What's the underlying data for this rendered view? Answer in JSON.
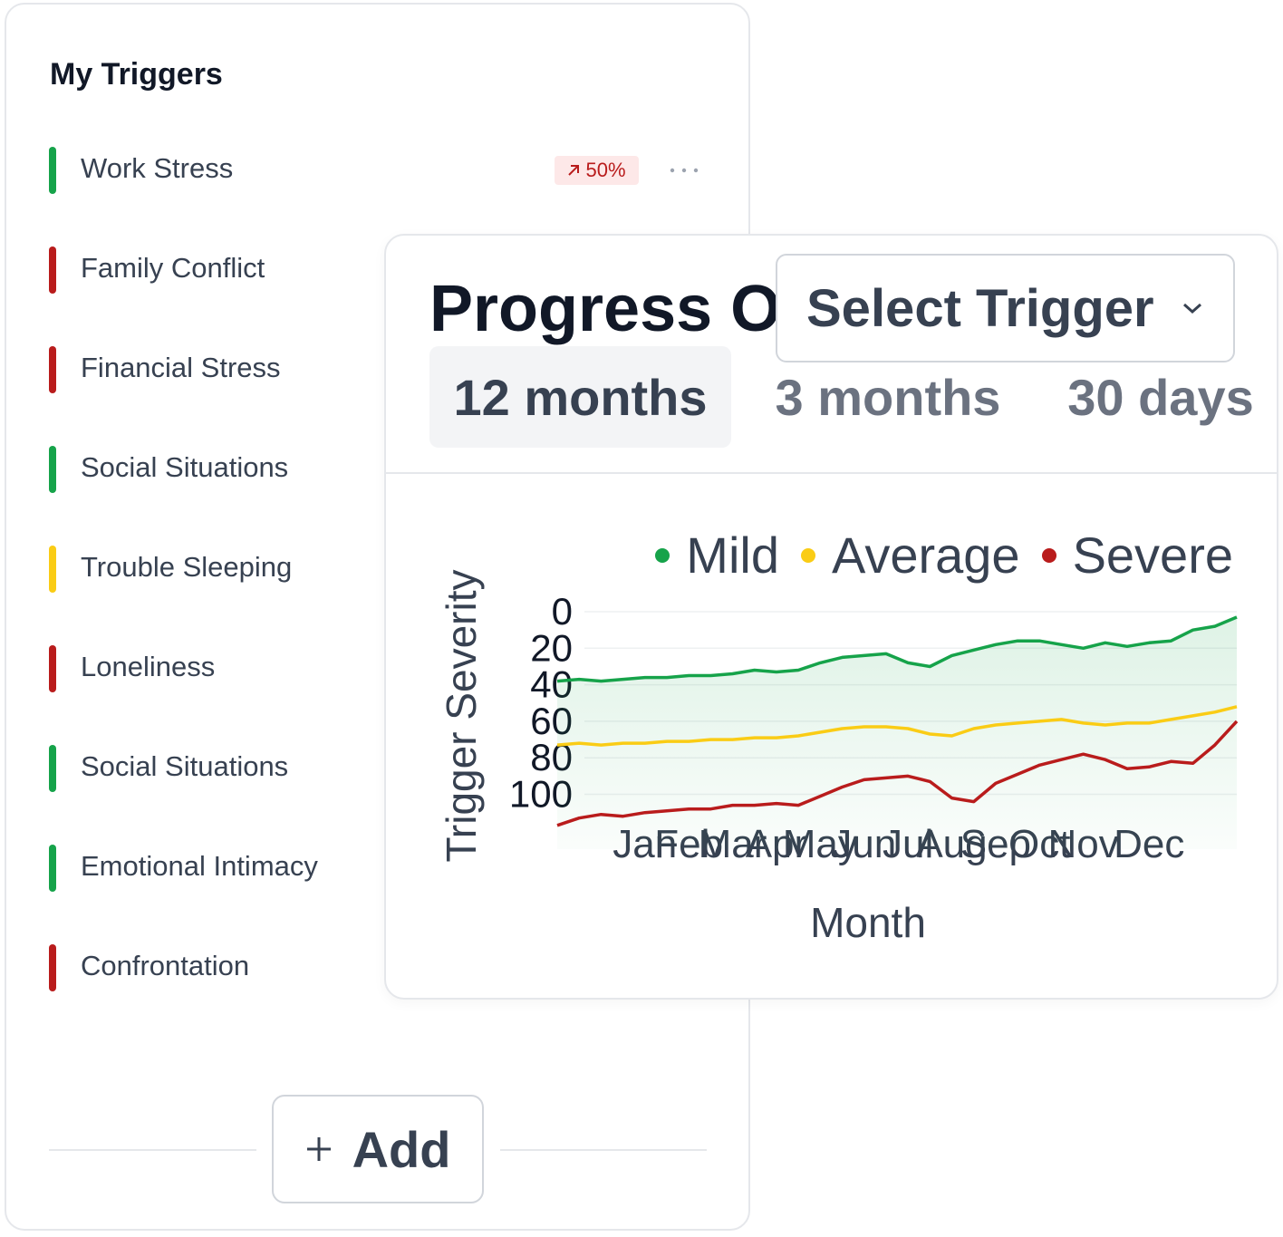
{
  "sidebar": {
    "title": "My Triggers",
    "items": [
      {
        "label": "Work Stress",
        "color": "#16a34a"
      },
      {
        "label": "Family Conflict",
        "color": "#b91c1c"
      },
      {
        "label": "Financial Stress",
        "color": "#b91c1c"
      },
      {
        "label": "Social Situations",
        "color": "#16a34a"
      },
      {
        "label": "Trouble Sleeping",
        "color": "#facc15"
      },
      {
        "label": "Loneliness",
        "color": "#b91c1c"
      },
      {
        "label": "Social Situations",
        "color": "#16a34a"
      },
      {
        "label": "Emotional Intimacy",
        "color": "#16a34a"
      },
      {
        "label": "Confrontation",
        "color": "#b91c1c"
      }
    ],
    "badge": "50%",
    "add_button": "Add"
  },
  "panel": {
    "title": "Progress O",
    "select": "Select Trigger",
    "tabs": [
      "12 months",
      "3 months",
      "30 days"
    ],
    "active_tab": 0
  },
  "chart_data": {
    "type": "line",
    "y_label": "Trigger Severity",
    "x_label": "Month",
    "x": [
      0,
      1,
      2,
      3,
      4,
      5,
      6,
      7,
      8,
      9,
      10,
      11,
      12,
      13,
      14,
      15,
      16,
      17,
      18,
      19,
      20,
      21,
      22,
      23,
      24,
      25,
      26,
      27,
      28,
      29,
      30,
      31
    ],
    "xlim": [
      0,
      31
    ],
    "xticks": [
      {
        "value": 4,
        "label": "Jan"
      },
      {
        "value": 6,
        "label": "Feb"
      },
      {
        "value": 8,
        "label": "Mar"
      },
      {
        "value": 10,
        "label": "Apr"
      },
      {
        "value": 12,
        "label": "May"
      },
      {
        "value": 14,
        "label": "Jun"
      },
      {
        "value": 16,
        "label": "Jul"
      },
      {
        "value": 18,
        "label": "Aug"
      },
      {
        "value": 20,
        "label": "Sep"
      },
      {
        "value": 22,
        "label": "Oct"
      },
      {
        "value": 24,
        "label": "Nov"
      },
      {
        "value": 27,
        "label": "Dec"
      }
    ],
    "ylim": [
      0,
      130
    ],
    "yticks": [
      0,
      20,
      40,
      60,
      80,
      100
    ],
    "y_inverted": true,
    "grid": true,
    "legend": "top-right",
    "series": [
      {
        "name": "Mild",
        "color": "#16a34a",
        "area": true,
        "values": [
          38,
          37,
          38,
          37,
          36,
          36,
          35,
          35,
          34,
          32,
          33,
          32,
          28,
          25,
          24,
          23,
          28,
          30,
          24,
          21,
          18,
          16,
          16,
          18,
          20,
          17,
          19,
          17,
          16,
          10,
          8,
          3
        ]
      },
      {
        "name": "Average",
        "color": "#facc15",
        "values": [
          73,
          72,
          73,
          72,
          72,
          71,
          71,
          70,
          70,
          69,
          69,
          68,
          66,
          64,
          63,
          63,
          64,
          67,
          68,
          64,
          62,
          61,
          60,
          59,
          61,
          62,
          61,
          61,
          59,
          57,
          55,
          52
        ]
      },
      {
        "name": "Severe",
        "color": "#b91c1c",
        "values": [
          117,
          113,
          111,
          112,
          110,
          109,
          108,
          108,
          106,
          106,
          105,
          106,
          101,
          96,
          92,
          91,
          90,
          93,
          102,
          104,
          94,
          89,
          84,
          81,
          78,
          81,
          86,
          85,
          82,
          83,
          73,
          60
        ]
      }
    ]
  }
}
